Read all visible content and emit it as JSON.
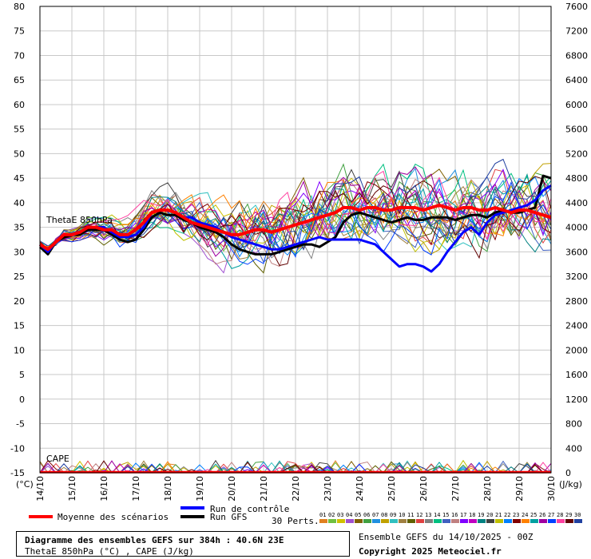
{
  "chart_data": {
    "type": "line",
    "y_axis_left": {
      "unit_label": "(°C)",
      "range": [
        -15,
        80
      ],
      "ticks": [
        80,
        75,
        70,
        65,
        60,
        55,
        50,
        45,
        40,
        35,
        30,
        25,
        20,
        15,
        10,
        5,
        0,
        -5,
        -10,
        -15
      ]
    },
    "y_axis_right": {
      "unit_label": "(J/kg)",
      "range": [
        0,
        7600
      ],
      "ticks": [
        7600,
        7200,
        6800,
        6400,
        6000,
        5600,
        5200,
        4800,
        4400,
        4000,
        3600,
        3200,
        2800,
        2400,
        2000,
        1600,
        1200,
        800,
        400,
        0
      ]
    },
    "x_axis": {
      "range": [
        "14/10",
        "30/10"
      ],
      "tick_labels": [
        "14/10",
        "15/10",
        "16/10",
        "17/10",
        "18/10",
        "19/10",
        "20/10",
        "21/10",
        "22/10",
        "23/10",
        "24/10",
        "25/10",
        "26/10",
        "27/10",
        "28/10",
        "29/10",
        "30/10"
      ]
    },
    "grid": true,
    "panel_labels": {
      "thetae": "ThetaE 850hPa",
      "cape": "CAPE"
    },
    "x_days": [
      0,
      0.25,
      0.5,
      0.75,
      1,
      1.25,
      1.5,
      1.75,
      2,
      2.25,
      2.5,
      2.75,
      3,
      3.25,
      3.5,
      3.75,
      4,
      4.25,
      4.5,
      4.75,
      5,
      5.25,
      5.5,
      5.75,
      6,
      6.25,
      6.5,
      6.75,
      7,
      7.25,
      7.5,
      7.75,
      8,
      8.25,
      8.5,
      8.75,
      9,
      9.25,
      9.5,
      9.75,
      10,
      10.25,
      10.5,
      10.75,
      11,
      11.25,
      11.5,
      11.75,
      12,
      12.25,
      12.5,
      12.75,
      13,
      13.25,
      13.5,
      13.75,
      14,
      14.25,
      14.5,
      14.75,
      15,
      15.25,
      15.5,
      15.75,
      16
    ],
    "series": [
      {
        "name": "Moyenne des scénarios",
        "color": "#ff0000",
        "width": 4,
        "values": [
          31.5,
          30.5,
          32,
          33.5,
          33.5,
          34,
          35,
          35,
          34.5,
          34.5,
          33.5,
          33.5,
          34.5,
          36,
          38,
          38.5,
          38.5,
          38,
          37,
          36,
          35.5,
          35,
          34.5,
          34,
          33.5,
          33.5,
          34,
          34.5,
          34.5,
          34,
          34.5,
          35,
          35.5,
          36,
          36.5,
          37,
          37.5,
          38,
          39,
          39,
          38.5,
          39,
          39,
          38.5,
          38.5,
          39,
          39,
          39,
          38.5,
          39,
          39.5,
          39,
          38.5,
          39,
          39,
          38.5,
          38.5,
          39,
          38.5,
          38,
          38.5,
          38.5,
          38,
          37.5,
          37
        ]
      },
      {
        "name": "Run de contrôle",
        "color": "#0000ff",
        "width": 3,
        "values": [
          31.5,
          30,
          32,
          33.5,
          33.5,
          34,
          35,
          35,
          35,
          34,
          33,
          33,
          33.5,
          35,
          38,
          38.5,
          38.5,
          38,
          37,
          37,
          36,
          35.5,
          35,
          34,
          33,
          32.5,
          32,
          31.5,
          31,
          30.5,
          30.5,
          31,
          31.5,
          32,
          32.5,
          33,
          32.5,
          32.5,
          32.5,
          32.5,
          32.5,
          32,
          31.5,
          30,
          28.5,
          27,
          27.5,
          27.5,
          27,
          26,
          27.5,
          30,
          32,
          34,
          35,
          33.5,
          36,
          37.5,
          38,
          38.5,
          39,
          39.5,
          40.5,
          42.5,
          43.5
        ]
      },
      {
        "name": "Run GFS",
        "color": "#000000",
        "width": 3,
        "values": [
          31,
          29.5,
          32,
          33,
          33.5,
          33.5,
          34.5,
          34.5,
          34.5,
          33.5,
          32.5,
          32,
          32.5,
          34.5,
          37,
          38,
          37.5,
          37.5,
          36.5,
          36,
          35,
          34.5,
          34,
          33,
          31.5,
          30.5,
          30,
          29.5,
          29.5,
          29.5,
          30,
          30.5,
          31,
          31.5,
          31.5,
          31,
          32,
          33,
          36,
          37.5,
          38,
          37.5,
          37,
          36.5,
          36,
          36.5,
          37,
          36.5,
          36.5,
          37,
          37,
          37,
          36.5,
          37,
          37.5,
          37.5,
          37,
          38,
          38.5,
          38,
          38,
          38.5,
          39,
          45.5,
          45
        ]
      }
    ],
    "ensemble_members": [
      "01",
      "02",
      "03",
      "04",
      "05",
      "06",
      "07",
      "08",
      "09",
      "10",
      "11",
      "12",
      "13",
      "14",
      "15",
      "16",
      "17",
      "18",
      "19",
      "20",
      "21",
      "22",
      "23",
      "24",
      "25",
      "26",
      "27",
      "28",
      "29",
      "30"
    ],
    "ensemble_colors": [
      "#e08020",
      "#70c040",
      "#d0c000",
      "#a050d0",
      "#806000",
      "#40a040",
      "#2090e0",
      "#c0a000",
      "#30c0c0",
      "#a08040",
      "#606000",
      "#e04040",
      "#808080",
      "#00c080",
      "#4060c0",
      "#c08080",
      "#8000ff",
      "#c000c0",
      "#008080",
      "#404040",
      "#c0c000",
      "#0080ff",
      "#800000",
      "#ff8000",
      "#00a0a0",
      "#a000a0",
      "#0040ff",
      "#ff40a0",
      "#600000",
      "#2040a0"
    ],
    "legend": {
      "mean_label": "Moyenne des scénarios",
      "control_label": "Run de contrôle",
      "gfs_label": "Run GFS",
      "perts_label": "30 Perts."
    }
  },
  "footer": {
    "title": "Diagramme des ensembles GEFS sur 384h : 40.6N 23E",
    "subtitle": "ThetaE 850hPa (°C) , CAPE (J/kg)",
    "run_info": "Ensemble GEFS du 14/10/2025 - 00Z",
    "copyright": "Copyright 2025 Meteociel.fr"
  }
}
